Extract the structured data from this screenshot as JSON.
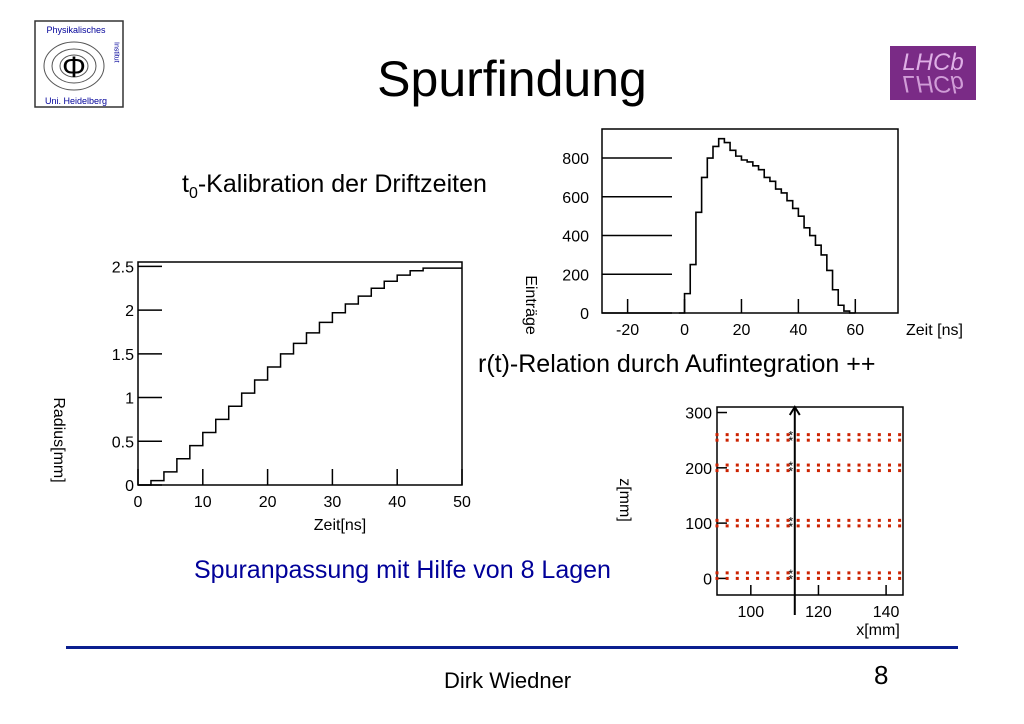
{
  "slide": {
    "title": "Spurfindung",
    "t0_label_main": "t",
    "t0_label_sub": "0",
    "t0_label_rest": "-Kalibration der Driftzeiten",
    "rt_label": "r(t)-Relation durch Aufintegration ++",
    "fit_label": "Spuranpassung mit Hilfe von 8 Lagen",
    "author": "Dirk Wiedner",
    "page_number": "8",
    "colors": {
      "accent_blue": "#000099",
      "footer_line": "#0a1f8f",
      "hit_red": "#cc2200",
      "lhcb_purple": "#7a2b86"
    }
  },
  "logos": {
    "institute_line1": "Physikalisches",
    "institute_line2": "Institut",
    "institute_line3": "Uni. Heidelberg",
    "institute_symbol": "Φ",
    "lhcb_text": "LHCb"
  },
  "chart_data": [
    {
      "type": "line",
      "name": "drift-time-histogram",
      "xlabel": "Zeit [ns]",
      "ylabel": "Einträge",
      "xlim": [
        -29,
        75
      ],
      "ylim": [
        0,
        950
      ],
      "x_ticks": [
        -20,
        0,
        20,
        40,
        60
      ],
      "y_ticks": [
        0,
        200,
        400,
        600,
        800
      ],
      "x": [
        -2,
        0,
        2,
        4,
        6,
        8,
        10,
        12,
        14,
        16,
        18,
        20,
        22,
        24,
        26,
        28,
        30,
        32,
        34,
        36,
        38,
        40,
        42,
        44,
        46,
        48,
        50,
        52,
        54,
        56,
        58,
        60
      ],
      "values": [
        0,
        100,
        250,
        520,
        700,
        800,
        860,
        900,
        880,
        840,
        810,
        790,
        780,
        760,
        740,
        700,
        680,
        640,
        620,
        580,
        540,
        500,
        440,
        400,
        350,
        300,
        220,
        120,
        40,
        10,
        0,
        0
      ]
    },
    {
      "type": "line",
      "name": "r-t-relation",
      "xlabel": "Zeit[ns]",
      "ylabel": "Radius[mm]",
      "xlim": [
        0,
        50
      ],
      "ylim": [
        0,
        2.55
      ],
      "x_ticks": [
        0,
        10,
        20,
        30,
        40,
        50
      ],
      "y_ticks": [
        0,
        0.5,
        1,
        1.5,
        2,
        2.5
      ],
      "y_tick_labels": [
        "0",
        "0.5",
        "1",
        "1.5",
        "2",
        "2.5"
      ],
      "x": [
        0,
        2,
        4,
        6,
        8,
        10,
        12,
        14,
        16,
        18,
        20,
        22,
        24,
        26,
        28,
        30,
        32,
        34,
        36,
        38,
        40,
        42,
        44,
        46,
        48,
        50
      ],
      "values": [
        0,
        0.05,
        0.15,
        0.3,
        0.45,
        0.6,
        0.75,
        0.9,
        1.05,
        1.2,
        1.35,
        1.5,
        1.62,
        1.74,
        1.86,
        1.97,
        2.07,
        2.16,
        2.25,
        2.33,
        2.4,
        2.45,
        2.48,
        2.48,
        2.48,
        2.48
      ]
    },
    {
      "type": "scatter",
      "name": "track-fit",
      "xlabel": "x[mm]",
      "ylabel": "z[mm]",
      "xlim": [
        90,
        145
      ],
      "ylim": [
        -30,
        310
      ],
      "x_ticks": [
        100,
        120,
        140
      ],
      "y_ticks": [
        0,
        100,
        200,
        300
      ],
      "layer_z": [
        0,
        10,
        95,
        105,
        195,
        205,
        250,
        260
      ],
      "hit_x_start": 90,
      "hit_x_end": 144,
      "hit_spacing": 3,
      "track_x": 113
    }
  ]
}
